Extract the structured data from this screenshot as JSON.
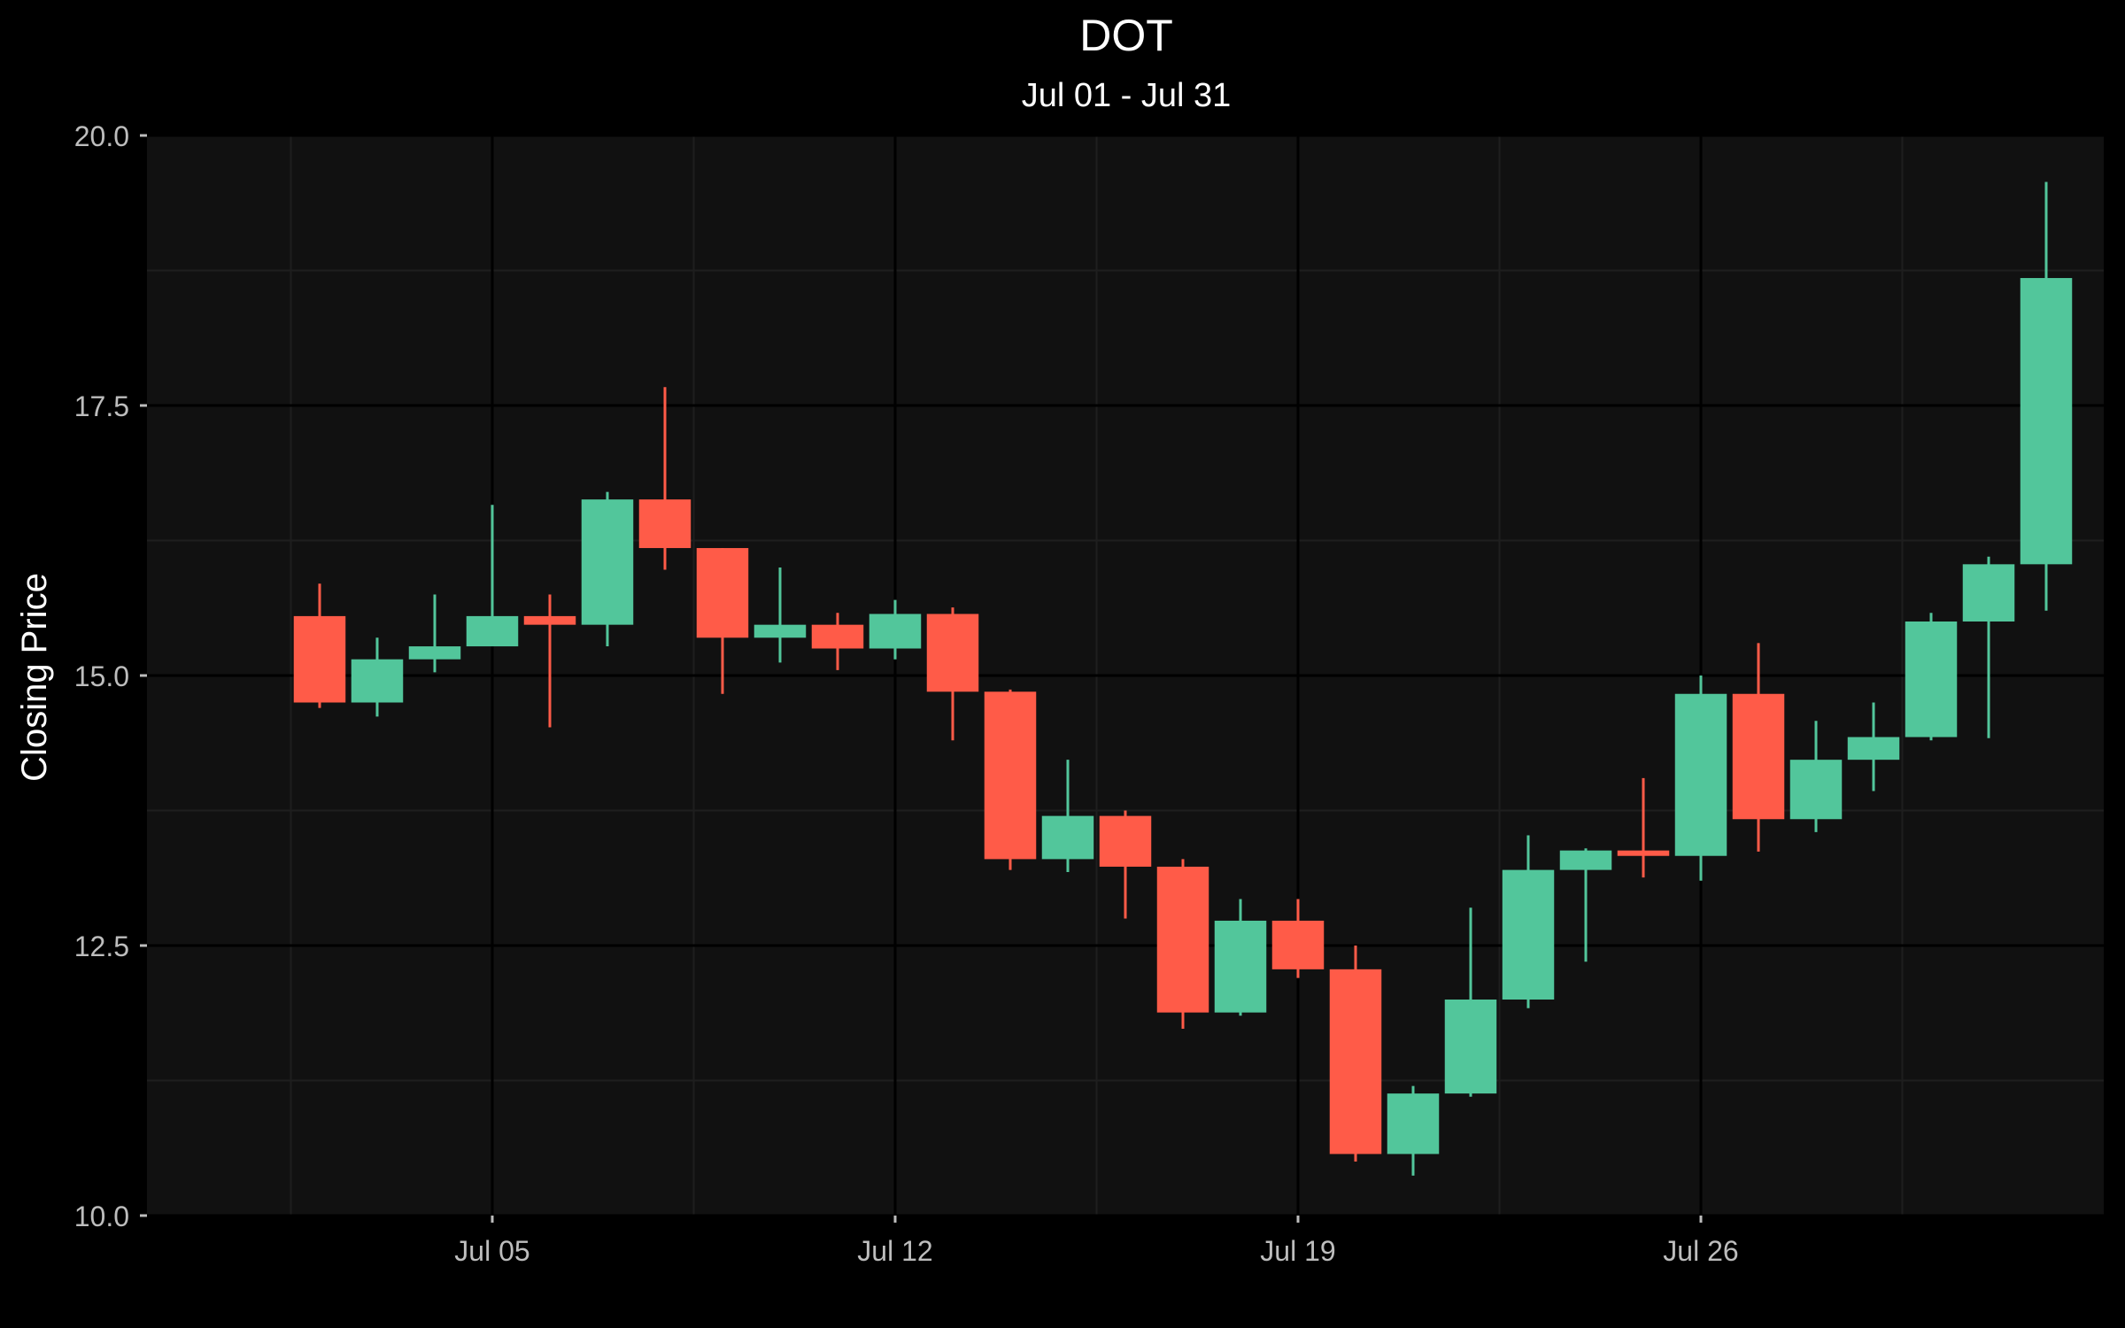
{
  "chart_data": {
    "type": "candlestick",
    "title": "DOT",
    "subtitle": "Jul 01 - Jul 31",
    "xlabel": "",
    "ylabel": "Closing Price",
    "ylim": [
      10.0,
      20.0
    ],
    "y_ticks": [
      "10.0",
      "12.5",
      "15.0",
      "17.5",
      "20.0"
    ],
    "x_ticks": [
      {
        "date": "2023-07-05",
        "label": "Jul 05"
      },
      {
        "date": "2023-07-12",
        "label": "Jul 12"
      },
      {
        "date": "2023-07-19",
        "label": "Jul 19"
      },
      {
        "date": "2023-07-26",
        "label": "Jul 26"
      }
    ],
    "xlim": [
      "2023-06-29",
      "2023-08-02"
    ],
    "grid": true,
    "legend": "none",
    "colors": {
      "background": "#000000",
      "panel": "#111111",
      "grid_major": "#000000",
      "grid_minor": "#1e1e1e",
      "up": "#52c69b",
      "down": "#ff5b48"
    },
    "candles": [
      {
        "date": "2023-07-02",
        "open": 15.55,
        "high": 15.85,
        "low": 14.7,
        "close": 14.75
      },
      {
        "date": "2023-07-03",
        "open": 14.75,
        "high": 15.35,
        "low": 14.62,
        "close": 15.15
      },
      {
        "date": "2023-07-04",
        "open": 15.15,
        "high": 15.75,
        "low": 15.03,
        "close": 15.27
      },
      {
        "date": "2023-07-05",
        "open": 15.27,
        "high": 16.58,
        "low": 15.27,
        "close": 15.55
      },
      {
        "date": "2023-07-06",
        "open": 15.55,
        "high": 15.75,
        "low": 14.52,
        "close": 15.47
      },
      {
        "date": "2023-07-07",
        "open": 15.47,
        "high": 16.7,
        "low": 15.27,
        "close": 16.63
      },
      {
        "date": "2023-07-08",
        "open": 16.63,
        "high": 17.67,
        "low": 15.98,
        "close": 16.18
      },
      {
        "date": "2023-07-09",
        "open": 16.18,
        "high": 16.18,
        "low": 14.83,
        "close": 15.35
      },
      {
        "date": "2023-07-10",
        "open": 15.35,
        "high": 16.0,
        "low": 15.12,
        "close": 15.47
      },
      {
        "date": "2023-07-11",
        "open": 15.47,
        "high": 15.58,
        "low": 15.05,
        "close": 15.25
      },
      {
        "date": "2023-07-12",
        "open": 15.25,
        "high": 15.7,
        "low": 15.15,
        "close": 15.57
      },
      {
        "date": "2023-07-13",
        "open": 15.57,
        "high": 15.63,
        "low": 14.4,
        "close": 14.85
      },
      {
        "date": "2023-07-14",
        "open": 14.85,
        "high": 14.87,
        "low": 13.2,
        "close": 13.3
      },
      {
        "date": "2023-07-15",
        "open": 13.3,
        "high": 14.22,
        "low": 13.18,
        "close": 13.7
      },
      {
        "date": "2023-07-16",
        "open": 13.7,
        "high": 13.75,
        "low": 12.75,
        "close": 13.23
      },
      {
        "date": "2023-07-17",
        "open": 13.23,
        "high": 13.3,
        "low": 11.73,
        "close": 11.88
      },
      {
        "date": "2023-07-18",
        "open": 11.88,
        "high": 12.93,
        "low": 11.85,
        "close": 12.73
      },
      {
        "date": "2023-07-19",
        "open": 12.73,
        "high": 12.93,
        "low": 12.2,
        "close": 12.28
      },
      {
        "date": "2023-07-20",
        "open": 12.28,
        "high": 12.5,
        "low": 10.5,
        "close": 10.57
      },
      {
        "date": "2023-07-21",
        "open": 10.57,
        "high": 11.2,
        "low": 10.37,
        "close": 11.13
      },
      {
        "date": "2023-07-22",
        "open": 11.13,
        "high": 12.85,
        "low": 11.1,
        "close": 12.0
      },
      {
        "date": "2023-07-23",
        "open": 12.0,
        "high": 13.52,
        "low": 11.92,
        "close": 13.2
      },
      {
        "date": "2023-07-24",
        "open": 13.2,
        "high": 13.4,
        "low": 12.35,
        "close": 13.38
      },
      {
        "date": "2023-07-25",
        "open": 13.38,
        "high": 14.05,
        "low": 13.13,
        "close": 13.33
      },
      {
        "date": "2023-07-26",
        "open": 13.33,
        "high": 15.0,
        "low": 13.1,
        "close": 14.83
      },
      {
        "date": "2023-07-27",
        "open": 14.83,
        "high": 15.3,
        "low": 13.37,
        "close": 13.67
      },
      {
        "date": "2023-07-28",
        "open": 13.67,
        "high": 14.58,
        "low": 13.55,
        "close": 14.22
      },
      {
        "date": "2023-07-29",
        "open": 14.22,
        "high": 14.75,
        "low": 13.93,
        "close": 14.43
      },
      {
        "date": "2023-07-30",
        "open": 14.43,
        "high": 15.58,
        "low": 14.4,
        "close": 15.5
      },
      {
        "date": "2023-07-31",
        "open": 15.5,
        "high": 16.1,
        "low": 14.42,
        "close": 16.03
      },
      {
        "date": "2023-08-01",
        "open": 16.03,
        "high": 19.57,
        "low": 15.6,
        "close": 18.68
      }
    ]
  }
}
